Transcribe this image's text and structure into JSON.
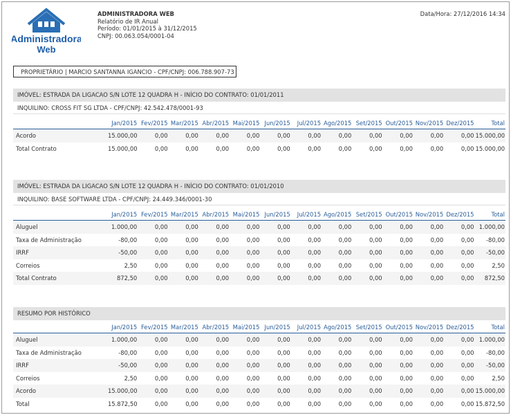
{
  "logo": {
    "line1": "Administradora",
    "line2": "Web"
  },
  "header": {
    "company": "ADMINISTRADORA WEB",
    "report": "Relatório de IR Anual",
    "period": "Período: 01/01/2015 à 31/12/2015",
    "cnpj": "CNPJ: 00.063.054/0001-04",
    "datetime": "Data/Hora: 27/12/2016 14:34"
  },
  "owner": "PROPRIETÁRIO | MARCIO SANTANNA IGANCIO - CPF/CNPJ: 006.788.907-73",
  "columns": [
    "Jan/2015",
    "Fev/2015",
    "Mar/2015",
    "Abr/2015",
    "Mai/2015",
    "Jun/2015",
    "Jul/2015",
    "Ago/2015",
    "Set/2015",
    "Out/2015",
    "Nov/2015",
    "Dez/2015",
    "Total"
  ],
  "sections": [
    {
      "property": "IMÓVEL: ESTRADA DA LIGACAO S/N LOTE 12 QUADRA H - INÍCIO DO CONTRATO: 01/01/2011",
      "tenant": "INQUILINO: CROSS FIT SG LTDA - CPF/CNPJ: 42.542.478/0001-93",
      "rows": [
        {
          "label": "Acordo",
          "values": [
            "15.000,00",
            "0,00",
            "0,00",
            "0,00",
            "0,00",
            "0,00",
            "0,00",
            "0,00",
            "0,00",
            "0,00",
            "0,00",
            "0,00",
            "15.000,00"
          ]
        },
        {
          "label": "Total Contrato",
          "values": [
            "15.000,00",
            "0,00",
            "0,00",
            "0,00",
            "0,00",
            "0,00",
            "0,00",
            "0,00",
            "0,00",
            "0,00",
            "0,00",
            "0,00",
            "15.000,00"
          ]
        }
      ]
    },
    {
      "property": "IMÓVEL: ESTRADA DA LIGACAO S/N LOTE 12 QUADRA H - INÍCIO DO CONTRATO: 01/01/2010",
      "tenant": "INQUILINO: BASE SOFTWARE LTDA - CPF/CNPJ: 24.449.346/0001-30",
      "rows": [
        {
          "label": "Aluguel",
          "values": [
            "1.000,00",
            "0,00",
            "0,00",
            "0,00",
            "0,00",
            "0,00",
            "0,00",
            "0,00",
            "0,00",
            "0,00",
            "0,00",
            "0,00",
            "1.000,00"
          ]
        },
        {
          "label": "Taxa de Administração",
          "values": [
            "-80,00",
            "0,00",
            "0,00",
            "0,00",
            "0,00",
            "0,00",
            "0,00",
            "0,00",
            "0,00",
            "0,00",
            "0,00",
            "0,00",
            "-80,00"
          ]
        },
        {
          "label": "IRRF",
          "values": [
            "-50,00",
            "0,00",
            "0,00",
            "0,00",
            "0,00",
            "0,00",
            "0,00",
            "0,00",
            "0,00",
            "0,00",
            "0,00",
            "0,00",
            "-50,00"
          ]
        },
        {
          "label": "Correios",
          "values": [
            "2,50",
            "0,00",
            "0,00",
            "0,00",
            "0,00",
            "0,00",
            "0,00",
            "0,00",
            "0,00",
            "0,00",
            "0,00",
            "0,00",
            "2,50"
          ]
        },
        {
          "label": "Total Contrato",
          "values": [
            "872,50",
            "0,00",
            "0,00",
            "0,00",
            "0,00",
            "0,00",
            "0,00",
            "0,00",
            "0,00",
            "0,00",
            "0,00",
            "0,00",
            "872,50"
          ]
        }
      ]
    }
  ],
  "summary": {
    "title": "RESUMO POR HISTÓRICO",
    "rows": [
      {
        "label": "Aluguel",
        "values": [
          "1.000,00",
          "0,00",
          "0,00",
          "0,00",
          "0,00",
          "0,00",
          "0,00",
          "0,00",
          "0,00",
          "0,00",
          "0,00",
          "0,00",
          "1.000,00"
        ]
      },
      {
        "label": "Taxa de Administração",
        "values": [
          "-80,00",
          "0,00",
          "0,00",
          "0,00",
          "0,00",
          "0,00",
          "0,00",
          "0,00",
          "0,00",
          "0,00",
          "0,00",
          "0,00",
          "-80,00"
        ]
      },
      {
        "label": "IRRF",
        "values": [
          "-50,00",
          "0,00",
          "0,00",
          "0,00",
          "0,00",
          "0,00",
          "0,00",
          "0,00",
          "0,00",
          "0,00",
          "0,00",
          "0,00",
          "-50,00"
        ]
      },
      {
        "label": "Correios",
        "values": [
          "2,50",
          "0,00",
          "0,00",
          "0,00",
          "0,00",
          "0,00",
          "0,00",
          "0,00",
          "0,00",
          "0,00",
          "0,00",
          "0,00",
          "2,50"
        ]
      },
      {
        "label": "Acordo",
        "values": [
          "15.000,00",
          "0,00",
          "0,00",
          "0,00",
          "0,00",
          "0,00",
          "0,00",
          "0,00",
          "0,00",
          "0,00",
          "0,00",
          "0,00",
          "15.000,00"
        ]
      },
      {
        "label": "Total",
        "values": [
          "15.872,50",
          "0,00",
          "0,00",
          "0,00",
          "0,00",
          "0,00",
          "0,00",
          "0,00",
          "0,00",
          "0,00",
          "0,00",
          "0,00",
          "15.872,50"
        ]
      }
    ]
  }
}
